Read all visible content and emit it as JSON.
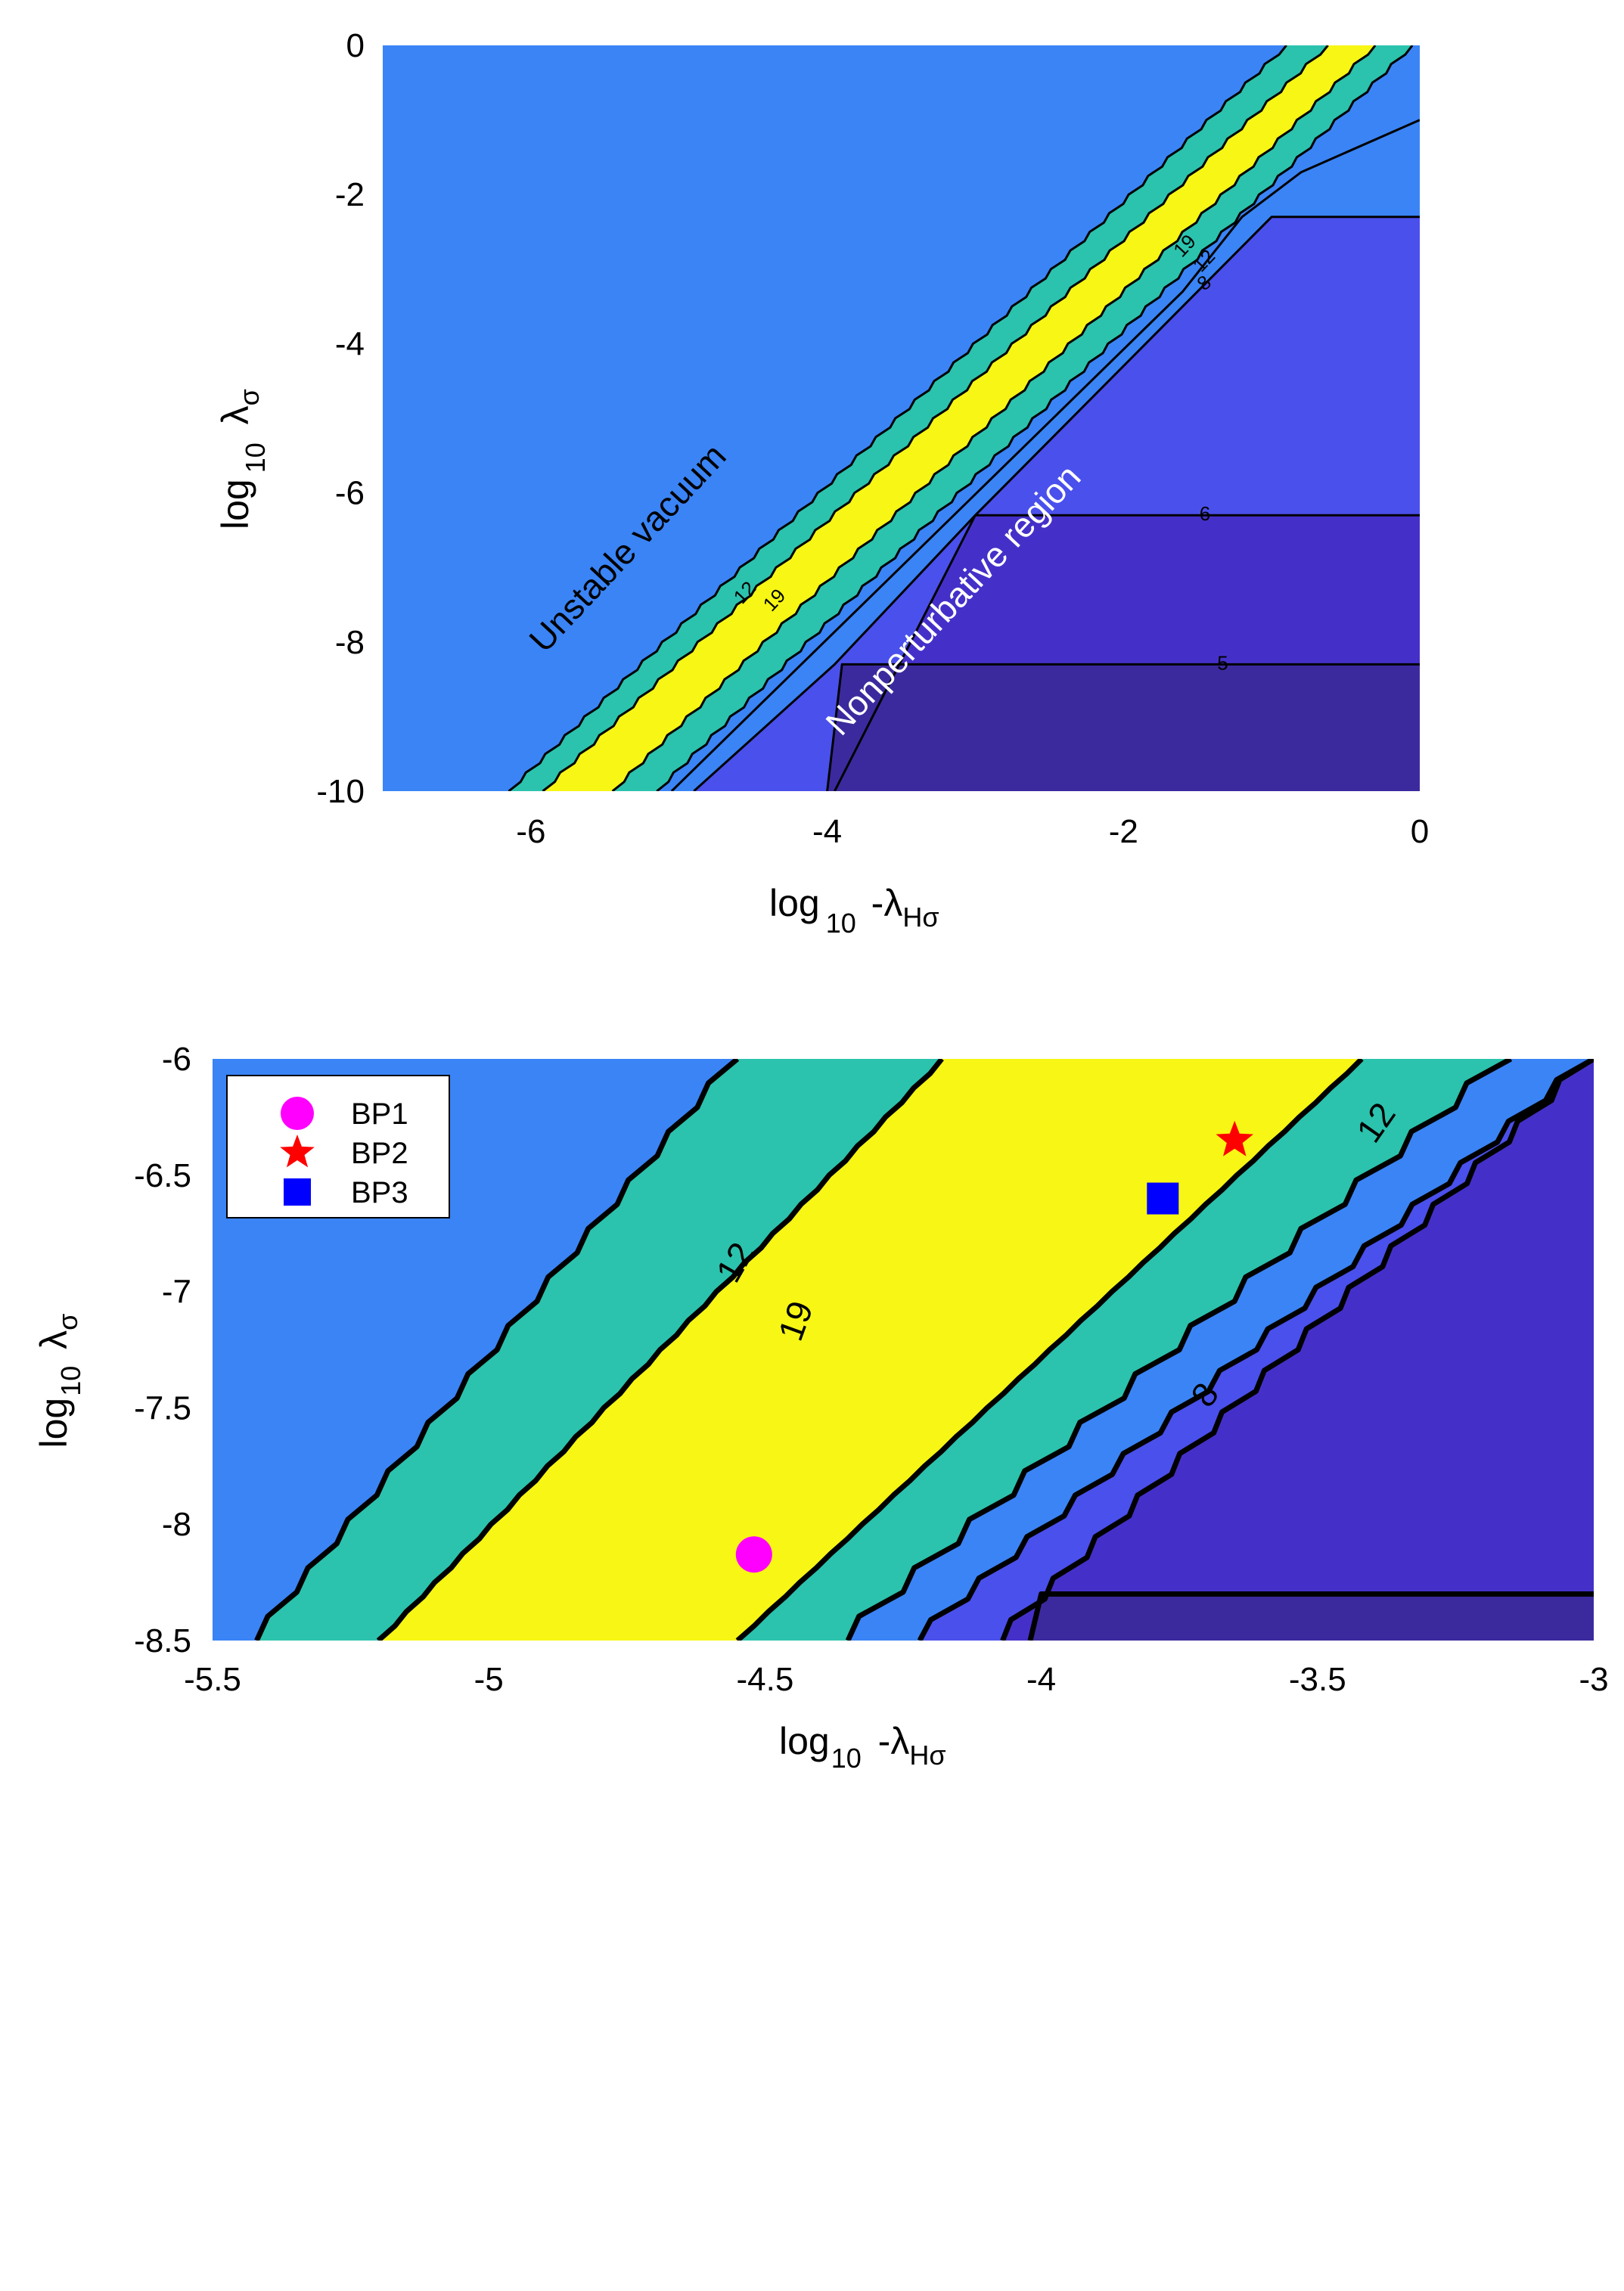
{
  "chart_data": [
    {
      "type": "contour",
      "xlabel": {
        "prefix": "log",
        "sub": "10",
        "suffix": " -λ",
        "suffix_sub": "Hσ"
      },
      "ylabel": {
        "prefix": "log",
        "sub": "10",
        "suffix": " λ",
        "suffix_sub": "σ"
      },
      "xlim": [
        -7,
        0
      ],
      "ylim": [
        -10,
        0
      ],
      "xticks": [
        -6,
        -4,
        -2,
        0
      ],
      "yticks": [
        0,
        -2,
        -4,
        -6,
        -8,
        -10
      ],
      "fill_colors": {
        "level_below_5": "#3b2a9e",
        "level_5_6": "#4430c9",
        "level_6_8": "#4a50ec",
        "level_8_12": "#3a84f6",
        "level_12_19": "#2bc3ad",
        "level_above_19": "#f7f614",
        "unstable": "#3a84f6"
      },
      "contour_levels": [
        5,
        6,
        8,
        12,
        19
      ],
      "contour_labels": [
        "19",
        "12",
        "8",
        "6",
        "5",
        "12",
        "19"
      ],
      "annotations": [
        {
          "text": "Unstable vacuum",
          "color": "#000000"
        },
        {
          "text": "Nonperturbative region",
          "color": "#ffffff"
        }
      ],
      "grid": false
    },
    {
      "type": "contour",
      "xlabel": {
        "prefix": "log",
        "sub": "10",
        "suffix": " -λ",
        "suffix_sub": "Hσ"
      },
      "ylabel": {
        "prefix": "log",
        "sub": "10",
        "suffix": " λ",
        "suffix_sub": "σ"
      },
      "xlim": [
        -5.5,
        -3
      ],
      "ylim": [
        -8.5,
        -6
      ],
      "xticks": [
        -5.5,
        -5,
        -4.5,
        -4,
        -3.5,
        -3
      ],
      "yticks": [
        -6,
        -6.5,
        -7,
        -7.5,
        -8,
        -8.5
      ],
      "contour_labels": [
        "12",
        "19",
        "12",
        "8"
      ],
      "legend_position": "top-left",
      "points": [
        {
          "name": "BP1",
          "x": -4.52,
          "y": -8.13,
          "marker": "circle",
          "color": "#ff00ff"
        },
        {
          "name": "BP2",
          "x": -3.65,
          "y": -6.35,
          "marker": "star",
          "color": "#ff0000"
        },
        {
          "name": "BP3",
          "x": -3.78,
          "y": -6.6,
          "marker": "square",
          "color": "#0000ff"
        }
      ],
      "grid": false
    }
  ]
}
